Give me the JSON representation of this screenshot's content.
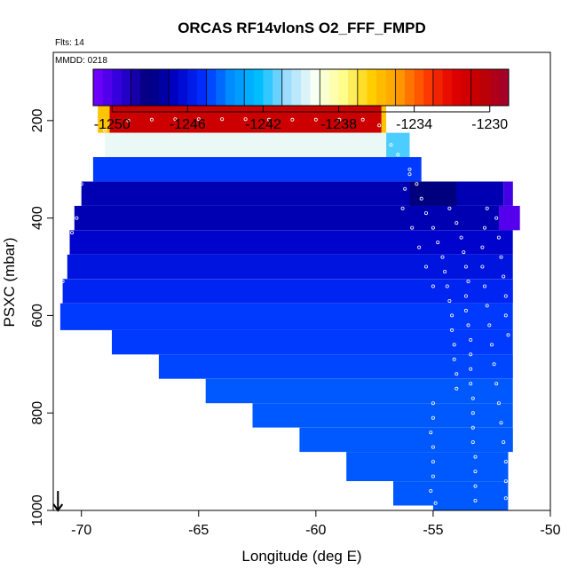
{
  "chart_data": {
    "type": "heatmap",
    "title": "ORCAS RF14vlonS O2_FFF_FMPD",
    "flights_note": "Flts: 14",
    "date_note": "MMDD: 0218",
    "xlabel": "Longitude (deg E)",
    "ylabel": "PSXC (mbar)",
    "xlim": [
      -71.2,
      -50
    ],
    "ylim": [
      1000,
      60
    ],
    "x_ticks": [
      -70,
      -65,
      -60,
      -55,
      -50
    ],
    "x_tick_labels": [
      "-70",
      "-65",
      "-60",
      "-55",
      "-50"
    ],
    "y_ticks": [
      200,
      400,
      600,
      800,
      1000
    ],
    "y_tick_labels": [
      "200",
      "400",
      "600",
      "800",
      "1000"
    ],
    "colorbar": {
      "min": -1251,
      "max": -1229,
      "ticks": [
        -1250,
        -1246,
        -1242,
        -1238,
        -1234,
        -1230
      ],
      "tick_labels": [
        "-1250",
        "-1246",
        "-1242",
        "-1238",
        "-1234",
        "-1230"
      ],
      "stops": [
        "#7a00ff",
        "#2a00d8",
        "#00007a",
        "#0000c8",
        "#0030ff",
        "#0090ff",
        "#00bfff",
        "#9fdcff",
        "#f8fff4",
        "#ffff90",
        "#ffd000",
        "#ff9c00",
        "#ff4000",
        "#e00000",
        "#c00000",
        "#a00030"
      ]
    },
    "cells": [
      {
        "x0": -68.8,
        "x1": -57.2,
        "p_top": 170,
        "p_bot": 225,
        "value": -1231
      },
      {
        "x0": -69.0,
        "x1": -57.0,
        "p_top": 225,
        "p_bot": 275,
        "value": -1239.5
      },
      {
        "x0": -69.5,
        "x1": -55.5,
        "p_top": 275,
        "p_bot": 325,
        "value": -1245
      },
      {
        "x0": -70.0,
        "x1": -52.0,
        "p_top": 325,
        "p_bot": 375,
        "value": -1247
      },
      {
        "x0": -70.3,
        "x1": -51.6,
        "p_top": 375,
        "p_bot": 425,
        "value": -1247
      },
      {
        "x0": -70.5,
        "x1": -51.6,
        "p_top": 425,
        "p_bot": 475,
        "value": -1246.5
      },
      {
        "x0": -70.6,
        "x1": -51.6,
        "p_top": 475,
        "p_bot": 525,
        "value": -1246
      },
      {
        "x0": -70.8,
        "x1": -51.6,
        "p_top": 525,
        "p_bot": 575,
        "value": -1245.5
      },
      {
        "x0": -70.9,
        "x1": -51.6,
        "p_top": 575,
        "p_bot": 630,
        "value": -1245
      },
      {
        "x0": -68.7,
        "x1": -51.6,
        "p_top": 630,
        "p_bot": 680,
        "value": -1245
      },
      {
        "x0": -66.7,
        "x1": -51.6,
        "p_top": 680,
        "p_bot": 730,
        "value": -1244.8
      },
      {
        "x0": -64.7,
        "x1": -51.6,
        "p_top": 730,
        "p_bot": 780,
        "value": -1244.5
      },
      {
        "x0": -62.7,
        "x1": -51.6,
        "p_top": 780,
        "p_bot": 830,
        "value": -1244.5
      },
      {
        "x0": -60.7,
        "x1": -51.6,
        "p_top": 830,
        "p_bot": 880,
        "value": -1244.5
      },
      {
        "x0": -58.7,
        "x1": -51.8,
        "p_top": 880,
        "p_bot": 940,
        "value": -1244.5
      },
      {
        "x0": -56.7,
        "x1": -51.8,
        "p_top": 940,
        "p_bot": 990,
        "value": -1244.5
      },
      {
        "x0": -55.0,
        "x1": -51.8,
        "p_top": 990,
        "p_bot": 1000,
        "value": -1244.5
      },
      {
        "x0": -56.0,
        "x1": -54.0,
        "p_top": 325,
        "p_bot": 375,
        "value": -1248
      },
      {
        "x0": -52.0,
        "x1": -51.6,
        "p_top": 325,
        "p_bot": 375,
        "value": -1250
      },
      {
        "x0": -52.2,
        "x1": -51.3,
        "p_top": 375,
        "p_bot": 425,
        "value": -1250.3
      },
      {
        "x0": -69.3,
        "x1": -68.8,
        "p_top": 170,
        "p_bot": 225,
        "value": -1236
      },
      {
        "x0": -57.2,
        "x1": -57.0,
        "p_top": 170,
        "p_bot": 225,
        "value": -1236
      },
      {
        "x0": -57.0,
        "x1": -56.0,
        "p_top": 225,
        "p_bot": 275,
        "value": -1241.5
      }
    ],
    "track_points": [
      [
        -69.0,
        220
      ],
      [
        -68.0,
        200
      ],
      [
        -67.0,
        198
      ],
      [
        -66.0,
        197
      ],
      [
        -65.0,
        197
      ],
      [
        -64.0,
        197
      ],
      [
        -63.0,
        197
      ],
      [
        -62.0,
        198
      ],
      [
        -61.0,
        198
      ],
      [
        -60.0,
        198
      ],
      [
        -59.0,
        198
      ],
      [
        -58.0,
        198
      ],
      [
        -57.3,
        210
      ],
      [
        -69.5,
        250
      ],
      [
        -69.6,
        280
      ],
      [
        -69.8,
        300
      ],
      [
        -70.0,
        330
      ],
      [
        -70.1,
        360
      ],
      [
        -70.2,
        400
      ],
      [
        -70.4,
        430
      ],
      [
        -70.6,
        470
      ],
      [
        -70.8,
        530
      ],
      [
        -71.0,
        600
      ],
      [
        -56.8,
        250
      ],
      [
        -56.5,
        270
      ],
      [
        -56.0,
        300
      ],
      [
        -55.7,
        330
      ],
      [
        -55.5,
        360
      ],
      [
        -55.3,
        390
      ],
      [
        -55.0,
        420
      ],
      [
        -54.8,
        450
      ],
      [
        -54.6,
        480
      ],
      [
        -54.5,
        510
      ],
      [
        -54.4,
        540
      ],
      [
        -54.3,
        570
      ],
      [
        -54.2,
        600
      ],
      [
        -54.2,
        630
      ],
      [
        -54.1,
        660
      ],
      [
        -54.1,
        690
      ],
      [
        -54.0,
        720
      ],
      [
        -54.0,
        750
      ],
      [
        -55.0,
        780
      ],
      [
        -55.0,
        810
      ],
      [
        -55.1,
        840
      ],
      [
        -55.0,
        870
      ],
      [
        -55.0,
        900
      ],
      [
        -55.0,
        930
      ],
      [
        -55.1,
        960
      ],
      [
        -54.9,
        985
      ],
      [
        -54.3,
        380
      ],
      [
        -54.0,
        410
      ],
      [
        -53.8,
        440
      ],
      [
        -53.7,
        470
      ],
      [
        -53.6,
        500
      ],
      [
        -53.5,
        530
      ],
      [
        -53.6,
        560
      ],
      [
        -53.6,
        590
      ],
      [
        -53.5,
        620
      ],
      [
        -53.4,
        650
      ],
      [
        -53.4,
        680
      ],
      [
        -53.4,
        710
      ],
      [
        -53.4,
        740
      ],
      [
        -53.3,
        770
      ],
      [
        -53.3,
        800
      ],
      [
        -53.3,
        830
      ],
      [
        -53.3,
        860
      ],
      [
        -53.2,
        890
      ],
      [
        -53.2,
        920
      ],
      [
        -53.2,
        950
      ],
      [
        -53.2,
        980
      ],
      [
        -52.7,
        380
      ],
      [
        -52.8,
        420
      ],
      [
        -52.9,
        460
      ],
      [
        -52.9,
        500
      ],
      [
        -52.8,
        540
      ],
      [
        -52.7,
        580
      ],
      [
        -52.6,
        620
      ],
      [
        -52.5,
        660
      ],
      [
        -52.4,
        700
      ],
      [
        -52.3,
        740
      ],
      [
        -52.2,
        780
      ],
      [
        -52.1,
        820
      ],
      [
        -52.0,
        860
      ],
      [
        -51.9,
        900
      ],
      [
        -51.9,
        940
      ],
      [
        -51.9,
        975
      ],
      [
        -52.3,
        400
      ],
      [
        -52.2,
        440
      ],
      [
        -52.1,
        480
      ],
      [
        -52.0,
        520
      ],
      [
        -51.9,
        560
      ],
      [
        -51.9,
        600
      ],
      [
        -51.8,
        640
      ],
      [
        -56.0,
        310
      ],
      [
        -56.2,
        340
      ],
      [
        -56.3,
        380
      ],
      [
        -55.9,
        420
      ],
      [
        -55.6,
        460
      ],
      [
        -55.3,
        500
      ],
      [
        -55.0,
        540
      ]
    ],
    "direction_arrow": {
      "x": -71.0,
      "p_from": 960,
      "p_to": 1000
    }
  }
}
